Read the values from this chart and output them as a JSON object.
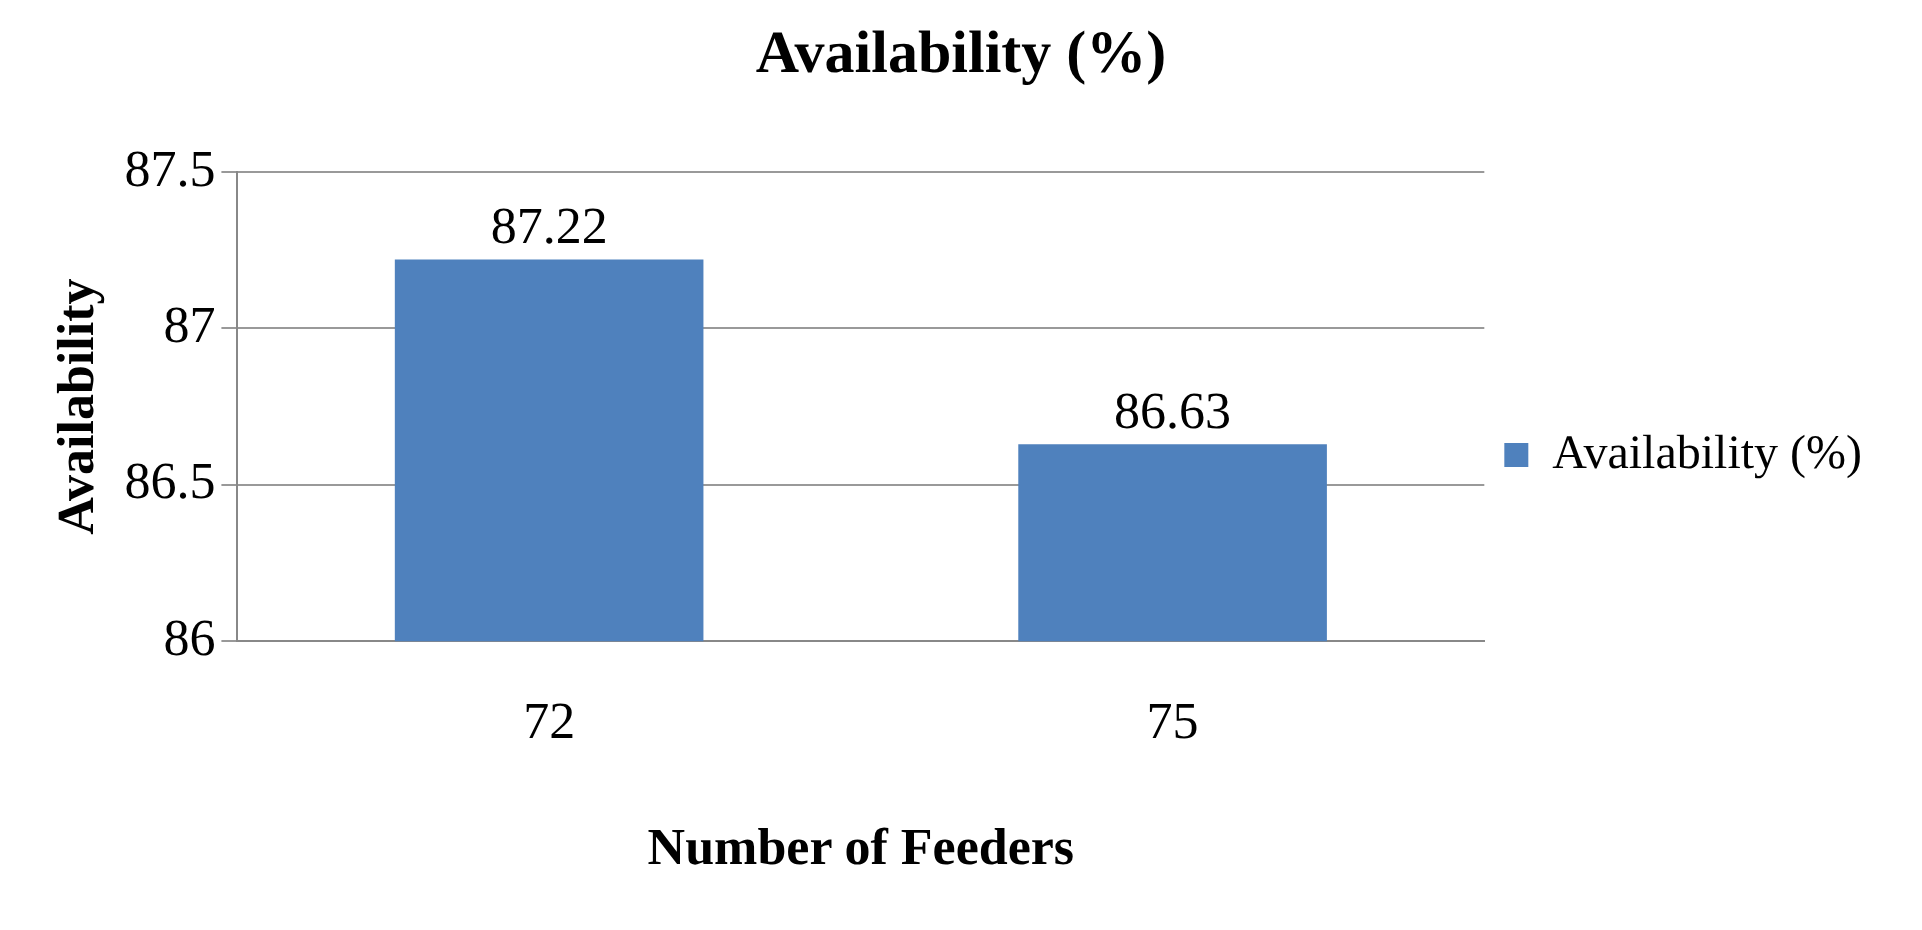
{
  "chart_data": {
    "type": "bar",
    "title": "Availability (%)",
    "xlabel": "Number of Feeders",
    "ylabel": "Availability",
    "categories": [
      "72",
      "75"
    ],
    "series": [
      {
        "name": "Availability (%)",
        "color": "#4f81bd",
        "values": [
          87.22,
          86.63
        ]
      }
    ],
    "ylim": [
      86,
      87.5
    ],
    "yticks": [
      86,
      86.5,
      87,
      87.5
    ],
    "grid": "y",
    "legend": "right",
    "data_labels": true
  }
}
